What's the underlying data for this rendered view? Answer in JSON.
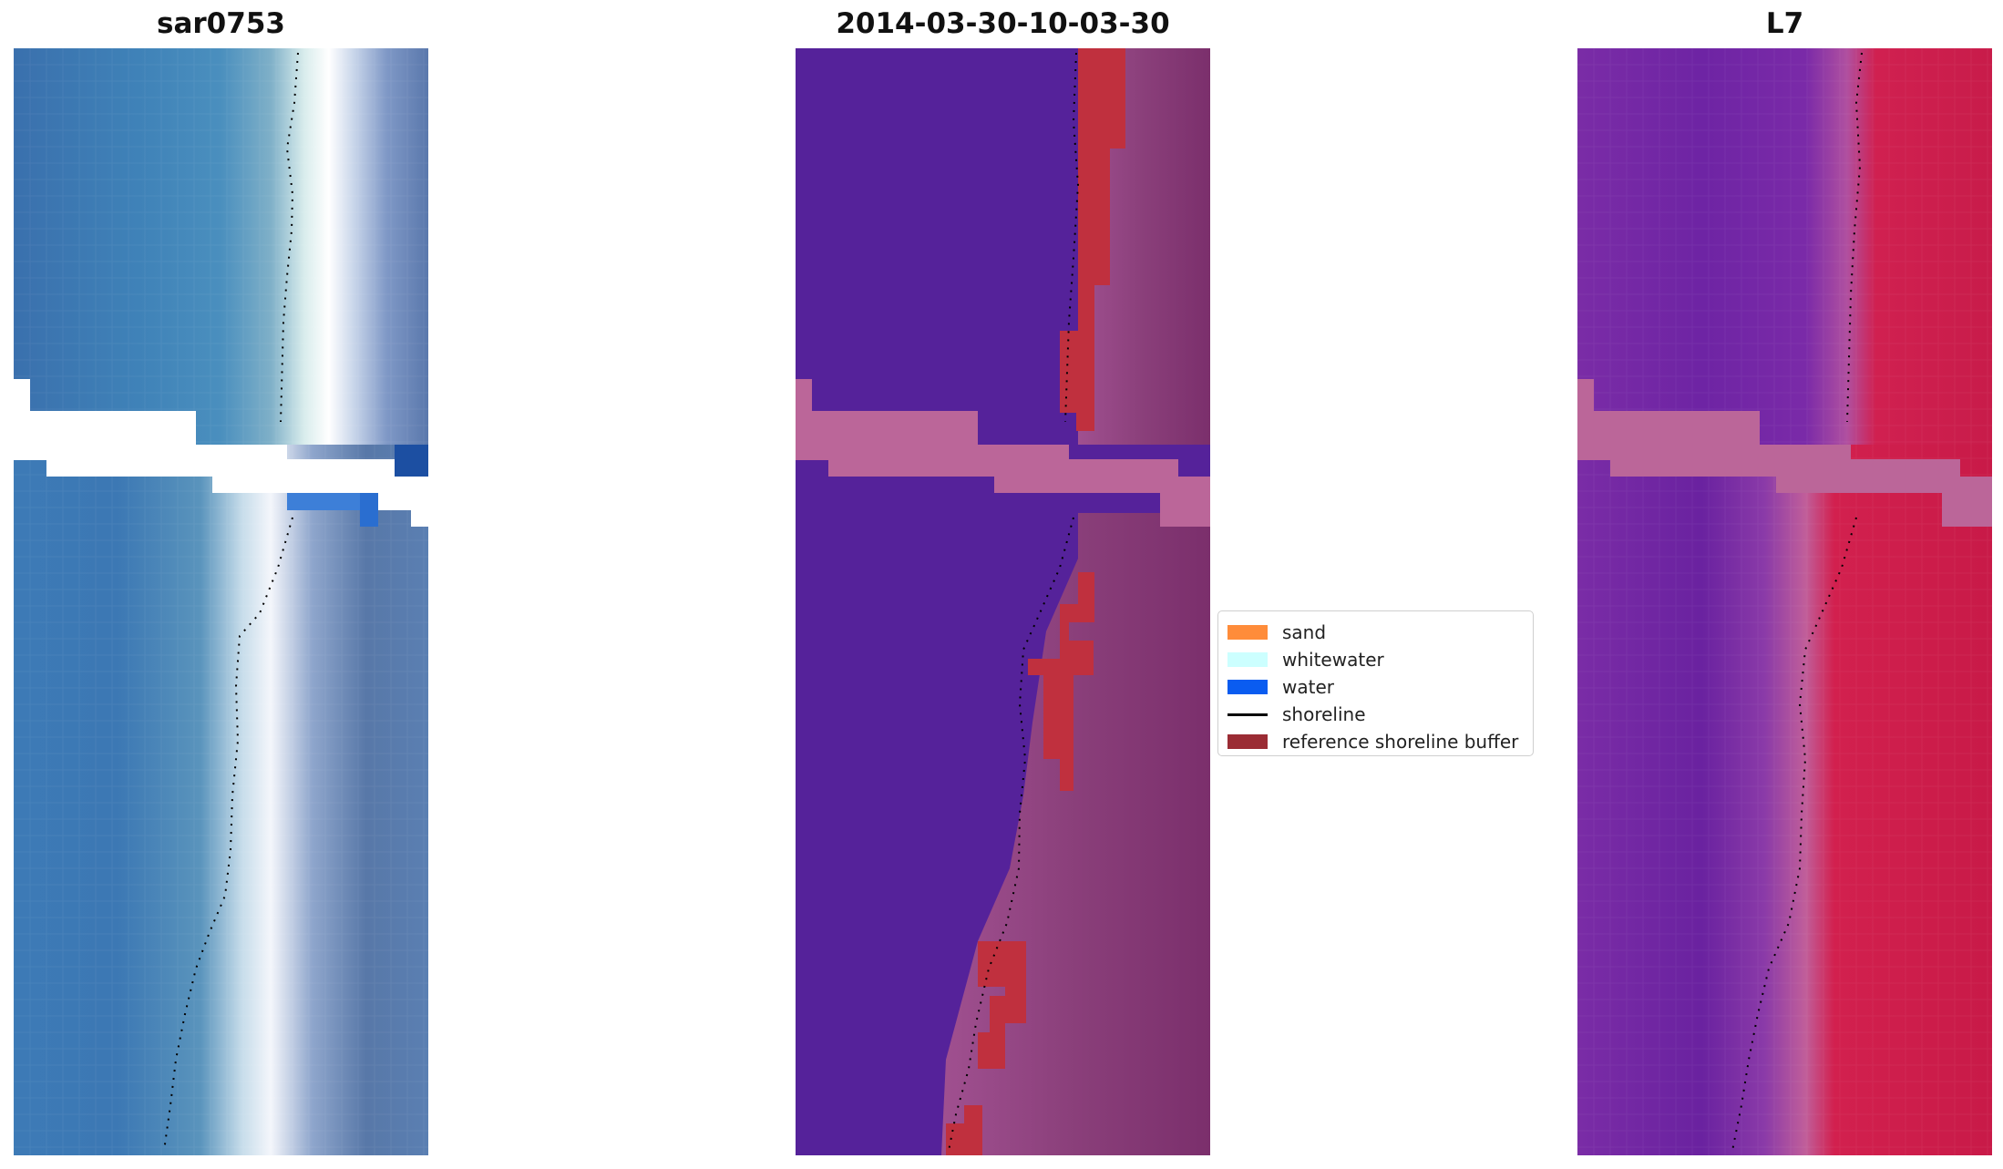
{
  "panels": {
    "left": {
      "title": "sar0753"
    },
    "middle": {
      "title": "2014-03-30-10-03-30"
    },
    "right": {
      "title": "L7"
    }
  },
  "legend": {
    "items": [
      {
        "label": "sand",
        "color": "#ff8c3a",
        "kind": "patch"
      },
      {
        "label": "whitewater",
        "color": "#ccffff",
        "kind": "patch"
      },
      {
        "label": "water",
        "color": "#0a5cf0",
        "kind": "patch"
      },
      {
        "label": "shoreline",
        "color": "#000000",
        "kind": "line"
      },
      {
        "label": "reference shoreline buffer",
        "color": "#9b2c34",
        "kind": "patch"
      }
    ]
  },
  "colors": {
    "sar_water": "#3d78b4",
    "sar_surf": "#e8f0f4",
    "class_water": "#55229a",
    "class_buffer": "#c03040",
    "class_nodata": "#bb6699",
    "l7_water": "#7a2aa8",
    "l7_land": "#cc1c48",
    "shoreline": "#000000"
  }
}
